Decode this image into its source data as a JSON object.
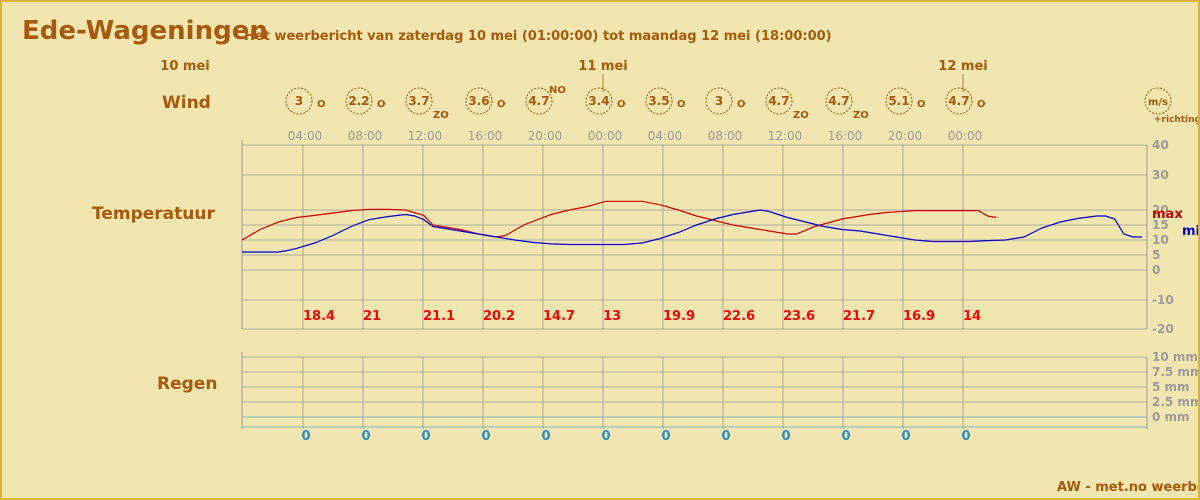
{
  "location": "Ede-Wageningen",
  "subtitle": "Het weerbericht van zaterdag 10 mei (01:00:00) tot maandag 12 mei (18:00:00)",
  "labels": {
    "wind": "Wind",
    "temperature": "Temperatuur",
    "rain": "Regen"
  },
  "footer": "AW - met.no weerberi",
  "colors": {
    "background": "#f2e6b0",
    "accent": "#a85a0a",
    "max_line": "#cc0000",
    "min_line": "#0000cc",
    "grid": "#999999",
    "rain_lines": "#5aa8c8",
    "rain_values": "#2a8ec6",
    "temp_values": "#ff0000"
  },
  "chart_data": {
    "type": "line",
    "day_labels": [
      {
        "label": "10 mei",
        "at_hour": 0
      },
      {
        "label": "11 mei",
        "at_hour": 23
      },
      {
        "label": "12 mei",
        "at_hour": 47
      }
    ],
    "time_ticks": [
      {
        "label": "04:00",
        "hour": 3
      },
      {
        "label": "08:00",
        "hour": 7
      },
      {
        "label": "12:00",
        "hour": 11
      },
      {
        "label": "16:00",
        "hour": 15
      },
      {
        "label": "20:00",
        "hour": 19
      },
      {
        "label": "00:00",
        "hour": 23
      },
      {
        "label": "04:00",
        "hour": 27
      },
      {
        "label": "08:00",
        "hour": 31
      },
      {
        "label": "12:00",
        "hour": 35
      },
      {
        "label": "16:00",
        "hour": 39
      },
      {
        "label": "20:00",
        "hour": 43
      },
      {
        "label": "00:00",
        "hour": 47
      }
    ],
    "wind": {
      "unit": "m/s",
      "unit_note": "+richting",
      "entries": [
        {
          "speed": "3",
          "direction": "O"
        },
        {
          "speed": "2.2",
          "direction": "O"
        },
        {
          "speed": "3.7",
          "direction": "ZO"
        },
        {
          "speed": "3.6",
          "direction": "O"
        },
        {
          "speed": "4.7",
          "direction": "NO"
        },
        {
          "speed": "3.4",
          "direction": "O"
        },
        {
          "speed": "3.5",
          "direction": "O"
        },
        {
          "speed": "3",
          "direction": "O"
        },
        {
          "speed": "4.7",
          "direction": "ZO"
        },
        {
          "speed": "4.7",
          "direction": "ZO"
        },
        {
          "speed": "5.1",
          "direction": "O"
        },
        {
          "speed": "4.7",
          "direction": "O"
        }
      ]
    },
    "temperature": {
      "unit": "°C",
      "y_ticks": [
        "40",
        "30",
        "20",
        "15",
        "10",
        "5",
        "0",
        "-10",
        "-20"
      ],
      "max_label": "max",
      "min_label": "min",
      "values_at_ticks": [
        "18.4",
        "21",
        "21.1",
        "20.2",
        "14.7",
        "13",
        "19.9",
        "22.6",
        "23.6",
        "21.7",
        "16.9",
        "14"
      ],
      "series": [
        {
          "name": "max",
          "points": [
            [
              -4,
              10
            ],
            [
              -2,
              13.5
            ],
            [
              0,
              16
            ],
            [
              2,
              17.5
            ],
            [
              4,
              18.2
            ],
            [
              6,
              19
            ],
            [
              8,
              19.8
            ],
            [
              10,
              20.2
            ],
            [
              12,
              20.2
            ],
            [
              14,
              20
            ],
            [
              16,
              18.2
            ],
            [
              17,
              15
            ],
            [
              18,
              14.5
            ],
            [
              20,
              13.5
            ],
            [
              22,
              12
            ],
            [
              23,
              11.5
            ],
            [
              24,
              11
            ],
            [
              25,
              11.5
            ],
            [
              27,
              15
            ],
            [
              30,
              18.5
            ],
            [
              32,
              20
            ],
            [
              34,
              21
            ],
            [
              36,
              22.5
            ],
            [
              40,
              22.5
            ],
            [
              42,
              21.5
            ],
            [
              44,
              20
            ],
            [
              46,
              18
            ],
            [
              50,
              15
            ],
            [
              52,
              14
            ],
            [
              54,
              13
            ],
            [
              56,
              12
            ],
            [
              57,
              12
            ],
            [
              59,
              14.5
            ],
            [
              62,
              17
            ],
            [
              65,
              18.5
            ],
            [
              67,
              19.2
            ],
            [
              70,
              19.8
            ],
            [
              75,
              19.8
            ],
            [
              77,
              19.8
            ],
            [
              78,
              18
            ],
            [
              79,
              17.5
            ]
          ]
        },
        {
          "name": "min",
          "points": [
            [
              -4,
              6
            ],
            [
              -2,
              6
            ],
            [
              0,
              6
            ],
            [
              1,
              6.5
            ],
            [
              2,
              7.2
            ],
            [
              4,
              9
            ],
            [
              6,
              11.5
            ],
            [
              8,
              14.5
            ],
            [
              10,
              16.8
            ],
            [
              12,
              17.8
            ],
            [
              14,
              18.5
            ],
            [
              15,
              18
            ],
            [
              16,
              16.8
            ],
            [
              17,
              14.5
            ],
            [
              18,
              14
            ],
            [
              20,
              13
            ],
            [
              22,
              12
            ],
            [
              24,
              11
            ],
            [
              26,
              10
            ],
            [
              28,
              9.2
            ],
            [
              30,
              8.7
            ],
            [
              32,
              8.5
            ],
            [
              34,
              8.5
            ],
            [
              36,
              8.5
            ],
            [
              38,
              8.5
            ],
            [
              40,
              9
            ],
            [
              42,
              10.5
            ],
            [
              44,
              12.5
            ],
            [
              46,
              15
            ],
            [
              48,
              17
            ],
            [
              50,
              18.5
            ],
            [
              52,
              19.5
            ],
            [
              53,
              20
            ],
            [
              54,
              19.5
            ],
            [
              56,
              17.5
            ],
            [
              58,
              16
            ],
            [
              60,
              14.5
            ],
            [
              62,
              13.5
            ],
            [
              64,
              13
            ],
            [
              66,
              12
            ],
            [
              68,
              11
            ],
            [
              70,
              10
            ],
            [
              72,
              9.5
            ],
            [
              74,
              9.5
            ],
            [
              76,
              9.5
            ],
            [
              78,
              9.8
            ],
            [
              80,
              10
            ],
            [
              82,
              11
            ],
            [
              84,
              14
            ],
            [
              86,
              16
            ],
            [
              88,
              17.2
            ],
            [
              90,
              18
            ],
            [
              91,
              18
            ],
            [
              92,
              17
            ],
            [
              93,
              12
            ],
            [
              94,
              11
            ],
            [
              95,
              11
            ]
          ]
        }
      ]
    },
    "rain": {
      "y_ticks": [
        "10 mm",
        "7.5 mm",
        "5 mm",
        "2.5 mm",
        "0 mm"
      ],
      "values": [
        "0",
        "0",
        "0",
        "0",
        "0",
        "0",
        "0",
        "0",
        "0",
        "0",
        "0",
        "0"
      ]
    }
  }
}
